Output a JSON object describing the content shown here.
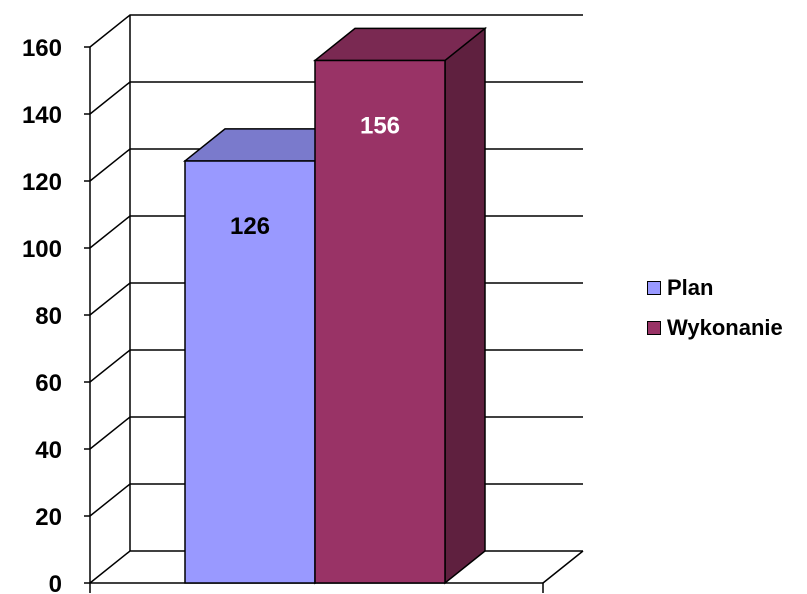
{
  "chart_data": {
    "type": "bar",
    "categories": [
      ""
    ],
    "series": [
      {
        "name": "Plan",
        "values": [
          126
        ],
        "color": "#9999FF"
      },
      {
        "name": "Wykonanie",
        "values": [
          156
        ],
        "color": "#993366"
      }
    ],
    "data_labels": [
      "126",
      "156"
    ],
    "yticks": [
      "0",
      "20",
      "40",
      "60",
      "80",
      "100",
      "120",
      "140",
      "160"
    ],
    "ylim": [
      0,
      160
    ],
    "grid": true,
    "legend_position": "right",
    "title": "",
    "xlabel": "",
    "ylabel": ""
  }
}
